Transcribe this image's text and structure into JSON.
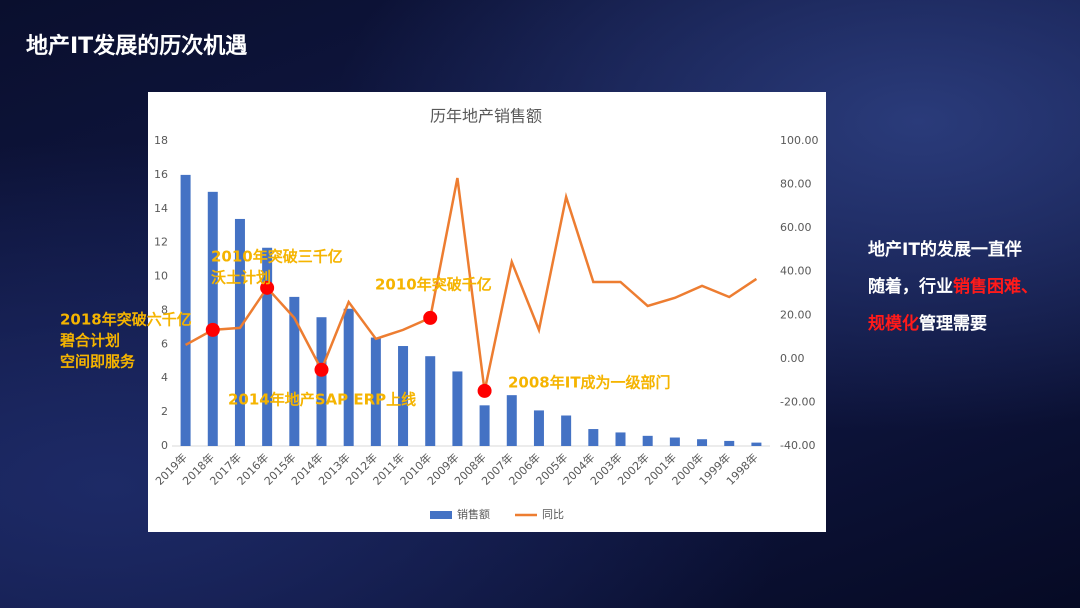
{
  "slide_title": "地产IT发展的历次机遇",
  "side_text": [
    [
      {
        "text": "地产IT的发展一直伴",
        "color": "#ffffff"
      }
    ],
    [
      {
        "text": "随着，行业",
        "color": "#ffffff"
      },
      {
        "text": "销售困难、",
        "color": "#ff1a1a"
      }
    ],
    [
      {
        "text": "规模化",
        "color": "#ff1a1a"
      },
      {
        "text": "管理需要",
        "color": "#ffffff"
      }
    ]
  ],
  "chart_data": {
    "type": "bar",
    "title": "历年地产销售额",
    "categories": [
      "2019年",
      "2018年",
      "2017年",
      "2016年",
      "2015年",
      "2014年",
      "2013年",
      "2012年",
      "2011年",
      "2010年",
      "2009年",
      "2008年",
      "2007年",
      "2006年",
      "2005年",
      "2004年",
      "2003年",
      "2002年",
      "2001年",
      "2000年",
      "1999年",
      "1998年"
    ],
    "series": [
      {
        "name": "销售额",
        "color": "#4472c4",
        "values": [
          16.0,
          15.0,
          13.4,
          11.7,
          8.8,
          7.6,
          8.1,
          6.4,
          5.9,
          5.3,
          4.4,
          2.4,
          3.0,
          2.1,
          1.8,
          1.0,
          0.8,
          0.6,
          0.5,
          0.4,
          0.3,
          0.2
        ]
      },
      {
        "name": "同比",
        "color": "#ed7d31",
        "axis": "y2",
        "values": [
          6.4,
          13.3,
          14.2,
          32.6,
          18.8,
          -5.0,
          26.1,
          9.2,
          13.3,
          18.8,
          83.0,
          -14.7,
          44.5,
          13.3,
          74.3,
          35.3,
          35.3,
          24.3,
          28.0,
          33.5,
          28.4,
          36.7
        ]
      }
    ],
    "ylim": [
      0,
      18
    ],
    "yticks": [
      0,
      2,
      4,
      6,
      8,
      10,
      12,
      14,
      16,
      18
    ],
    "y2lim": [
      -40,
      100
    ],
    "y2ticks": [
      {
        "value": -40,
        "label": "-40.00"
      },
      {
        "value": -20,
        "label": "-20.00"
      },
      {
        "value": 0,
        "label": "0.00"
      },
      {
        "value": 20,
        "label": "20.00"
      },
      {
        "value": 40,
        "label": "40.00"
      },
      {
        "value": 60,
        "label": "60.00"
      },
      {
        "value": 80,
        "label": "80.00"
      },
      {
        "value": 100,
        "label": "100.00"
      }
    ],
    "annotations": [
      [
        "2018年突破六千亿",
        "碧合计划",
        "空间即服务"
      ],
      [
        "2010年突破三千亿",
        "沃土计划"
      ],
      [
        "2014年地产SAP ERP上线"
      ],
      [
        "2010年突破千亿"
      ],
      [
        "2008年IT成为一级部门"
      ]
    ]
  }
}
